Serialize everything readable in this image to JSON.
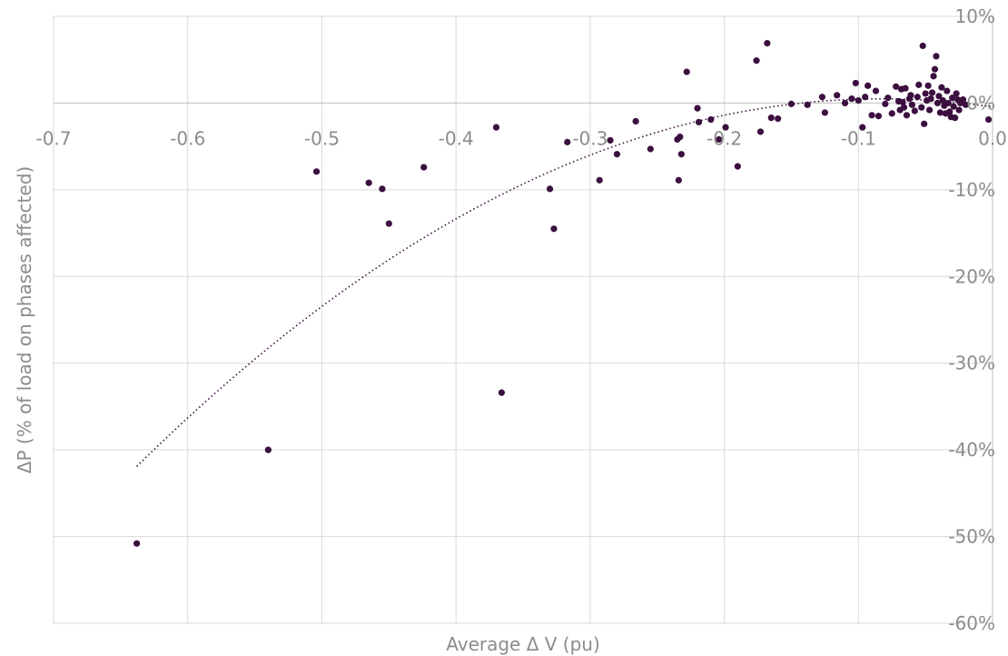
{
  "chart_data": {
    "type": "scatter",
    "title": "",
    "xlabel": "Average Δ V (pu)",
    "ylabel": "ΔP (% of load on phases affected)",
    "xlim": [
      -0.7,
      0.0
    ],
    "ylim": [
      -60,
      10
    ],
    "x_ticks": [
      "-0.7",
      "-0.6",
      "-0.5",
      "-0.4",
      "-0.3",
      "-0.2",
      "-0.1",
      "0.0"
    ],
    "y_ticks": [
      "10%",
      "0%",
      "-10%",
      "-20%",
      "-30%",
      "-40%",
      "-50%",
      "-60%"
    ],
    "grid": true,
    "legend": "none",
    "marker_color": "#3b0f3f",
    "series": [
      {
        "x": [
          -0.638,
          -0.54,
          -0.504,
          -0.465,
          -0.455,
          -0.45,
          -0.424,
          -0.37,
          -0.366,
          -0.33,
          -0.327,
          -0.317,
          -0.293,
          -0.285,
          -0.28,
          -0.266,
          -0.255,
          -0.235,
          -0.234,
          -0.233,
          -0.232,
          -0.228,
          -0.22,
          -0.219,
          -0.21,
          -0.204,
          -0.199,
          -0.19,
          -0.176,
          -0.173,
          -0.168,
          -0.165,
          -0.16,
          -0.15,
          -0.138,
          -0.127,
          -0.125,
          -0.116,
          -0.11,
          -0.105,
          -0.102,
          -0.1,
          -0.097,
          -0.095,
          -0.093,
          -0.09,
          -0.087,
          -0.085,
          -0.08,
          -0.078,
          -0.075,
          -0.072,
          -0.07,
          -0.069,
          -0.068,
          -0.067,
          -0.066,
          -0.065,
          -0.064,
          -0.062,
          -0.061,
          -0.06,
          -0.058,
          -0.056,
          -0.055,
          -0.053,
          -0.052,
          -0.051,
          -0.05,
          -0.049,
          -0.048,
          -0.047,
          -0.046,
          -0.045,
          -0.044,
          -0.043,
          -0.042,
          -0.041,
          -0.04,
          -0.039,
          -0.038,
          -0.037,
          -0.036,
          -0.035,
          -0.034,
          -0.033,
          -0.032,
          -0.031,
          -0.03,
          -0.029,
          -0.028,
          -0.027,
          -0.026,
          -0.025,
          -0.024,
          -0.022,
          -0.02,
          -0.003
        ],
        "y": [
          -50.8,
          -40.0,
          -7.9,
          -9.2,
          -9.9,
          -13.9,
          -7.4,
          -2.8,
          -33.4,
          -9.9,
          -14.5,
          -4.5,
          -8.9,
          -4.3,
          -5.9,
          -2.1,
          -5.3,
          -4.2,
          -8.9,
          -3.9,
          -5.9,
          3.6,
          -0.6,
          -2.2,
          -1.9,
          -4.2,
          -2.8,
          -7.3,
          4.9,
          -3.3,
          6.9,
          -1.7,
          -1.8,
          -0.1,
          -0.2,
          0.7,
          -1.1,
          0.9,
          0.0,
          0.5,
          2.3,
          0.3,
          -2.8,
          0.7,
          2.0,
          -1.4,
          1.4,
          -1.5,
          -0.1,
          0.6,
          -1.2,
          1.9,
          0.2,
          -0.8,
          1.6,
          0.1,
          -0.5,
          1.7,
          -1.4,
          0.5,
          0.9,
          -0.2,
          -0.9,
          0.7,
          2.1,
          -0.5,
          6.6,
          -2.4,
          1.1,
          0.3,
          2.0,
          -0.8,
          0.5,
          1.2,
          3.1,
          3.9,
          5.4,
          0.0,
          0.8,
          -1.1,
          1.8,
          0.3,
          -0.3,
          -1.2,
          1.4,
          0.0,
          -1.0,
          -1.6,
          0.6,
          -0.4,
          -1.7,
          1.1,
          0.4,
          -0.8,
          0.0,
          0.4,
          -0.2,
          -1.9
        ]
      }
    ],
    "trendline": {
      "style": "dotted",
      "type": "polynomial",
      "x_range": [
        -0.638,
        0.0
      ]
    }
  }
}
